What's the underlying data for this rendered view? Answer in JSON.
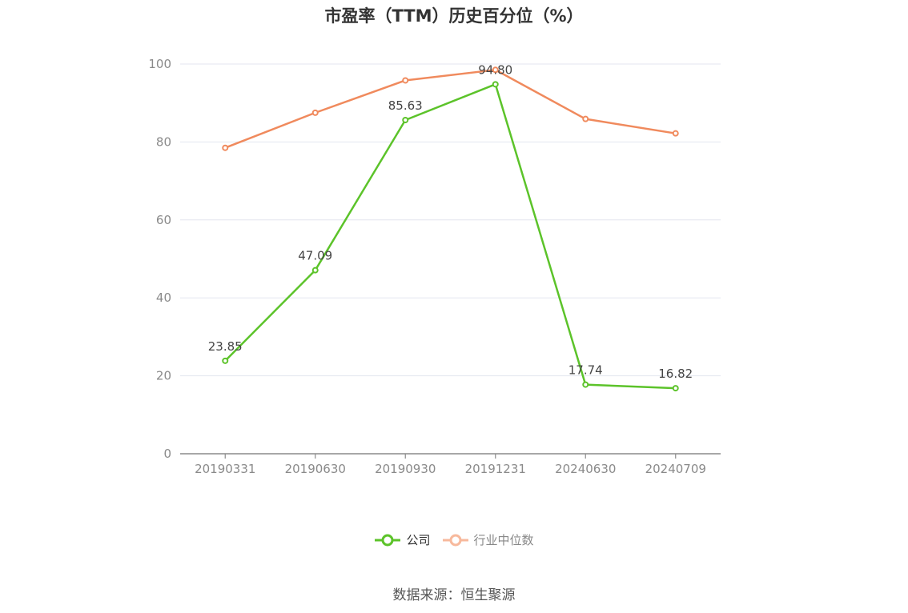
{
  "chart_data": {
    "type": "line",
    "title": "市盈率（TTM）历史百分位（%）",
    "categories": [
      "20190331",
      "20190630",
      "20190930",
      "20191231",
      "20240630",
      "20240709"
    ],
    "ylim": [
      0,
      100
    ],
    "yticks": [
      0,
      20,
      40,
      60,
      80,
      100
    ],
    "grid": true,
    "legend_position": "bottom",
    "series": [
      {
        "name": "公司",
        "color": "#5cc32a",
        "values": [
          23.85,
          47.09,
          85.63,
          94.8,
          17.74,
          16.82
        ],
        "labels": [
          "23.85",
          "47.09",
          "85.63",
          "94.80",
          "17.74",
          "16.82"
        ]
      },
      {
        "name": "行业中位数",
        "color": "#f08a5d",
        "values": [
          78.5,
          87.5,
          95.8,
          98.5,
          85.9,
          82.2
        ]
      }
    ]
  },
  "footer": {
    "source": "数据来源：恒生聚源"
  }
}
